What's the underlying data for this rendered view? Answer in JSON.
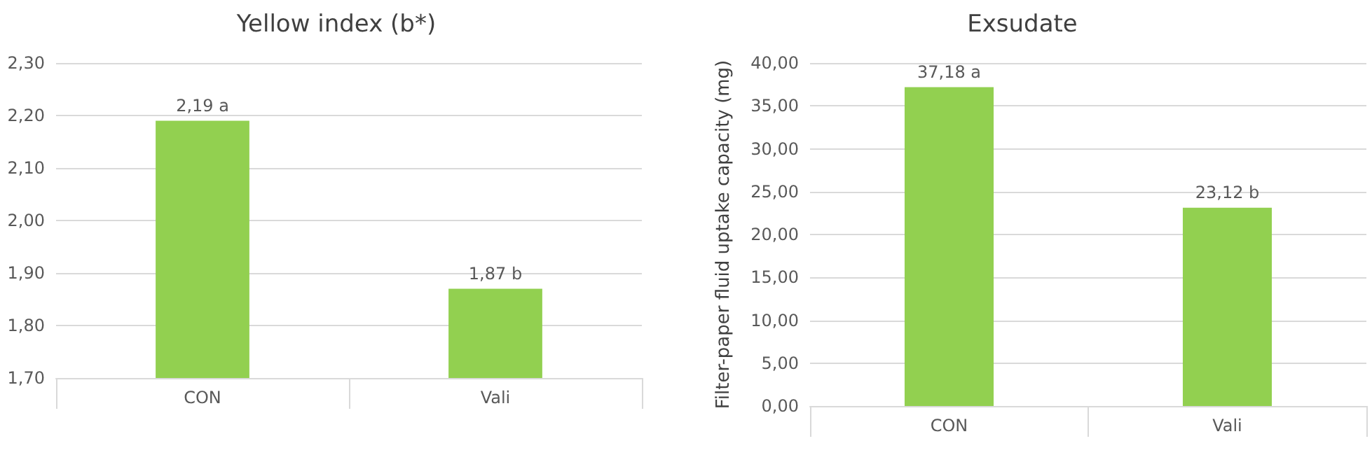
{
  "chart_data": [
    {
      "type": "bar",
      "title": "Yellow index (b*)",
      "categories": [
        "CON",
        "Vali"
      ],
      "values": [
        2.19,
        1.87
      ],
      "color": "#92d050",
      "value_labels": [
        "2,19 a",
        "1,87 b"
      ],
      "ylim": [
        1.7,
        2.3
      ],
      "yticks": [
        {
          "value": 1.7,
          "label": "1,70"
        },
        {
          "value": 1.8,
          "label": "1,80"
        },
        {
          "value": 1.9,
          "label": "1,90"
        },
        {
          "value": 2.0,
          "label": "2,00"
        },
        {
          "value": 2.1,
          "label": "2,10"
        },
        {
          "value": 2.2,
          "label": "2,20"
        },
        {
          "value": 2.3,
          "label": "2,30"
        }
      ],
      "grid": "y"
    },
    {
      "type": "bar",
      "title": "Exsudate",
      "ylabel": "Filter-paper fluid uptake capacity (mg)",
      "categories": [
        "CON",
        "Vali"
      ],
      "values": [
        37.18,
        23.12
      ],
      "color": "#92d050",
      "value_labels": [
        "37,18 a",
        "23,12 b"
      ],
      "ylim": [
        0,
        40
      ],
      "yticks": [
        {
          "value": 0,
          "label": "0,00"
        },
        {
          "value": 5,
          "label": "5,00"
        },
        {
          "value": 10,
          "label": "10,00"
        },
        {
          "value": 15,
          "label": "15,00"
        },
        {
          "value": 20,
          "label": "20,00"
        },
        {
          "value": 25,
          "label": "25,00"
        },
        {
          "value": 30,
          "label": "30,00"
        },
        {
          "value": 35,
          "label": "35,00"
        },
        {
          "value": 40,
          "label": "40,00"
        }
      ],
      "grid": "y"
    }
  ]
}
